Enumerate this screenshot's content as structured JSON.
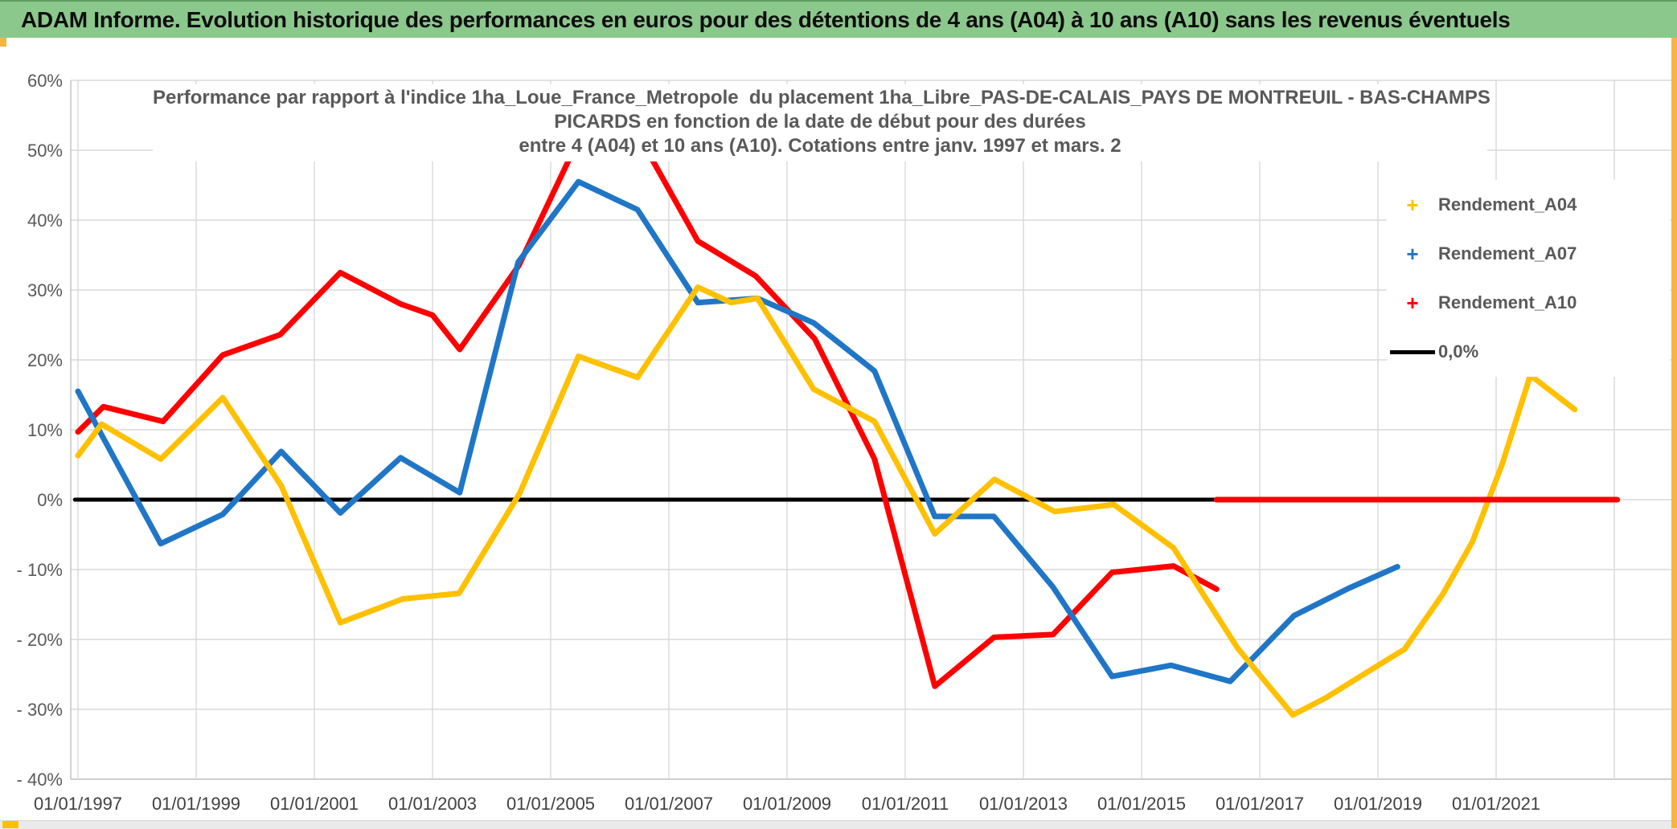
{
  "header": {
    "title": "ADAM Informe. Evolution historique des performances en euros pour des détentions de 4 ans (A04) à 10 ans (A10) sans les revenus éventuels"
  },
  "chart_data": {
    "type": "line",
    "title_lines": [
      "Performance par rapport à l'indice 1ha_Loue_France_Metropole  du placement 1ha_Libre_PAS-DE-CALAIS_PAYS DE MONTREUIL - BAS-CHAMPS",
      "PICARDS en fonction de la date de début pour des durées",
      "entre 4 (A04) et 10 ans (A10). Cotations entre janv. 1997 et mars. 2"
    ],
    "x_axis": {
      "tick_labels": [
        "01/01/1997",
        "01/01/1999",
        "01/01/2001",
        "01/01/2003",
        "01/01/2005",
        "01/01/2007",
        "01/01/2009",
        "01/01/2011",
        "01/01/2013",
        "01/01/2015",
        "01/01/2017",
        "01/01/2019",
        "01/01/2021"
      ],
      "tick_years": [
        1997,
        1999,
        2001,
        2003,
        2005,
        2007,
        2009,
        2011,
        2013,
        2015,
        2017,
        2019,
        2021
      ],
      "grid_years": [
        1997,
        1999,
        2001,
        2003,
        2005,
        2007,
        2009,
        2011,
        2013,
        2015,
        2017,
        2019,
        2021,
        2023
      ],
      "range_years": [
        1996.88,
        2024.0
      ]
    },
    "y_axis": {
      "tick_labels": [
        "60%",
        "50%",
        "40%",
        "30%",
        "20%",
        "10%",
        "0%",
        "- 10%",
        "- 20%",
        "- 30%",
        "- 40%"
      ],
      "tick_values": [
        60,
        50,
        40,
        30,
        20,
        10,
        0,
        -10,
        -20,
        -30,
        -40
      ],
      "range": [
        -40,
        60
      ],
      "grid": true
    },
    "series": [
      {
        "name": "0,0%",
        "color": "#000000",
        "width": 5,
        "points": [
          [
            1996.95,
            0
          ],
          [
            2016.27,
            0
          ]
        ]
      },
      {
        "name": "Rendement_A10",
        "color": "#FF0000",
        "width": 7,
        "points": [
          [
            1997.0,
            9.7
          ],
          [
            1997.43,
            13.3
          ],
          [
            1998.44,
            11.2
          ],
          [
            1999.45,
            20.7
          ],
          [
            2000.42,
            23.6
          ],
          [
            2001.44,
            32.5
          ],
          [
            2002.46,
            28.0
          ],
          [
            2003.0,
            26.4
          ],
          [
            2003.46,
            21.5
          ],
          [
            2004.46,
            33.5
          ],
          [
            2005.47,
            51.5
          ],
          [
            2006.2,
            56.5
          ],
          [
            2007.49,
            37.0
          ],
          [
            2008.47,
            32.0
          ],
          [
            2009.47,
            23.0
          ],
          [
            2010.48,
            5.8
          ],
          [
            2011.5,
            -26.7
          ],
          [
            2012.5,
            -19.7
          ],
          [
            2013.5,
            -19.3
          ],
          [
            2014.5,
            -10.4
          ],
          [
            2015.54,
            -9.5
          ],
          [
            2016.27,
            -12.8
          ]
        ]
      },
      {
        "name": "Rendement_A07",
        "color": "#2076C6",
        "width": 7,
        "points": [
          [
            1997.0,
            15.5
          ],
          [
            1998.4,
            -6.3
          ],
          [
            1999.45,
            -2.1
          ],
          [
            2000.44,
            6.9
          ],
          [
            2001.44,
            -1.9
          ],
          [
            2002.46,
            6.0
          ],
          [
            2003.46,
            1.0
          ],
          [
            2004.45,
            34.0
          ],
          [
            2005.47,
            45.5
          ],
          [
            2006.47,
            41.5
          ],
          [
            2007.49,
            28.2
          ],
          [
            2008.5,
            28.8
          ],
          [
            2009.45,
            25.3
          ],
          [
            2010.48,
            18.4
          ],
          [
            2011.5,
            -2.4
          ],
          [
            2012.5,
            -2.4
          ],
          [
            2013.5,
            -12.5
          ],
          [
            2014.5,
            -25.3
          ],
          [
            2015.5,
            -23.7
          ],
          [
            2016.5,
            -26.0
          ],
          [
            2017.58,
            -16.6
          ],
          [
            2018.5,
            -12.7
          ],
          [
            2019.33,
            -9.6
          ]
        ]
      },
      {
        "name": "Rendement_A04",
        "color": "#FFC000",
        "width": 7,
        "points": [
          [
            1997.0,
            6.3
          ],
          [
            1997.4,
            10.8
          ],
          [
            1998.4,
            5.8
          ],
          [
            1999.45,
            14.6
          ],
          [
            2000.44,
            2.0
          ],
          [
            2001.44,
            -17.6
          ],
          [
            2002.5,
            -14.2
          ],
          [
            2003.45,
            -13.4
          ],
          [
            2004.48,
            1.0
          ],
          [
            2005.47,
            20.5
          ],
          [
            2006.47,
            17.5
          ],
          [
            2007.49,
            30.4
          ],
          [
            2008.05,
            28.2
          ],
          [
            2008.5,
            28.8
          ],
          [
            2009.45,
            15.8
          ],
          [
            2010.48,
            11.2
          ],
          [
            2011.5,
            -4.9
          ],
          [
            2012.51,
            2.9
          ],
          [
            2013.53,
            -1.7
          ],
          [
            2014.53,
            -0.7
          ],
          [
            2015.54,
            -6.9
          ],
          [
            2016.63,
            -21.3
          ],
          [
            2017.56,
            -30.8
          ],
          [
            2018.13,
            -28.3
          ],
          [
            2019.12,
            -23.1
          ],
          [
            2019.45,
            -21.4
          ],
          [
            2020.1,
            -13.5
          ],
          [
            2020.6,
            -6.0
          ],
          [
            2021.1,
            5.0
          ],
          [
            2021.58,
            17.8
          ],
          [
            2022.33,
            12.9
          ]
        ]
      },
      {
        "name": "Rendement_A10 (segment 0%)",
        "color": "#FF0000",
        "width": 7,
        "points": [
          [
            2016.27,
            0
          ],
          [
            2023.05,
            0
          ]
        ]
      }
    ],
    "legend": {
      "position": "right",
      "entries": [
        {
          "label": "Rendement_A04",
          "marker": "plus",
          "color": "#FFC000"
        },
        {
          "label": "Rendement_A07",
          "marker": "plus",
          "color": "#2076C6"
        },
        {
          "label": "Rendement_A10",
          "marker": "plus",
          "color": "#FF0000"
        },
        {
          "label": "0,0%",
          "marker": "line",
          "color": "#000000"
        }
      ]
    },
    "colors": {
      "grid": "#D9D9D9",
      "axis": "#BFBFBF",
      "tick_text": "#595959",
      "x_tick_text": "#404040",
      "header_green": "#8BC88B",
      "accent_orange": "#F5B53E"
    }
  }
}
